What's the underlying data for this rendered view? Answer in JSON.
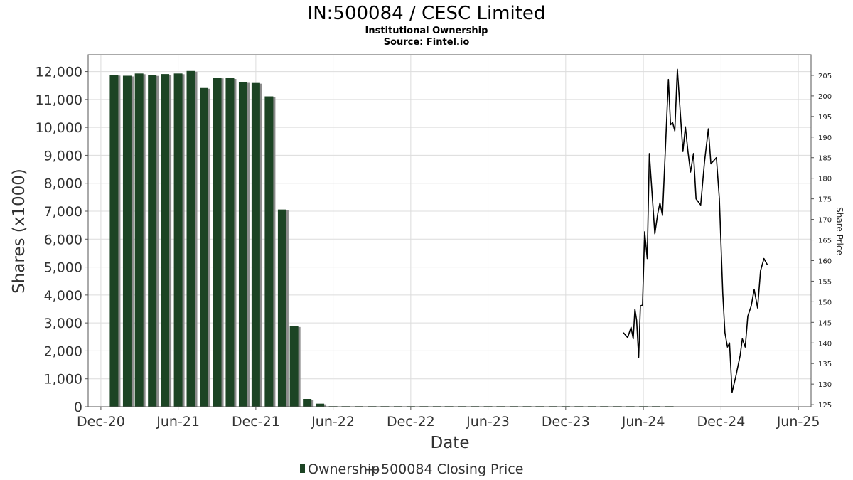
{
  "chart_data": {
    "type": "bar",
    "title": "IN:500084 / CESC Limited",
    "subtitle": "Institutional Ownership",
    "source": "Source: Fintel.io",
    "xlabel": "Date",
    "ylabel": "Shares (x1000)",
    "y2label": "Share Price",
    "ylim": [
      0,
      12600
    ],
    "y2lim": [
      124.5,
      210
    ],
    "xlim": [
      "2020-11-01",
      "2025-07-01"
    ],
    "yticks": [
      "0",
      "1,000",
      "2,000",
      "3,000",
      "4,000",
      "5,000",
      "6,000",
      "7,000",
      "8,000",
      "9,000",
      "10,000",
      "11,000",
      "12,000"
    ],
    "y2ticks": [
      "125",
      "130",
      "135",
      "140",
      "145",
      "150",
      "155",
      "160",
      "165",
      "170",
      "175",
      "180",
      "185",
      "190",
      "195",
      "200",
      "205"
    ],
    "xticks": [
      {
        "label": "Dec-20",
        "date": "2020-12-01"
      },
      {
        "label": "Jun-21",
        "date": "2021-06-01"
      },
      {
        "label": "Dec-21",
        "date": "2021-12-01"
      },
      {
        "label": "Jun-22",
        "date": "2022-06-01"
      },
      {
        "label": "Dec-22",
        "date": "2022-12-01"
      },
      {
        "label": "Jun-23",
        "date": "2023-06-01"
      },
      {
        "label": "Dec-23",
        "date": "2023-12-01"
      },
      {
        "label": "Jun-24",
        "date": "2024-06-01"
      },
      {
        "label": "Dec-24",
        "date": "2024-12-01"
      },
      {
        "label": "Jun-25",
        "date": "2025-06-01"
      }
    ],
    "grid": true,
    "legend_position": "bottom",
    "colors": {
      "bar": "#1c4424",
      "bar_shadow": "#8c8c8c",
      "line": "#000000",
      "frame": "#555555"
    },
    "series": [
      {
        "name": "Ownership",
        "type": "bar",
        "points": [
          {
            "date": "2021-01-01",
            "value": 11880
          },
          {
            "date": "2021-02-01",
            "value": 11850
          },
          {
            "date": "2021-03-01",
            "value": 11930
          },
          {
            "date": "2021-04-01",
            "value": 11870
          },
          {
            "date": "2021-05-01",
            "value": 11910
          },
          {
            "date": "2021-06-01",
            "value": 11930
          },
          {
            "date": "2021-07-01",
            "value": 12020
          },
          {
            "date": "2021-08-01",
            "value": 11410
          },
          {
            "date": "2021-09-01",
            "value": 11780
          },
          {
            "date": "2021-10-01",
            "value": 11760
          },
          {
            "date": "2021-11-01",
            "value": 11620
          },
          {
            "date": "2021-12-01",
            "value": 11590
          },
          {
            "date": "2022-01-01",
            "value": 11110
          },
          {
            "date": "2022-02-01",
            "value": 7060
          },
          {
            "date": "2022-03-01",
            "value": 2880
          },
          {
            "date": "2022-04-01",
            "value": 280
          },
          {
            "date": "2022-05-01",
            "value": 110
          },
          {
            "date": "2022-06-01",
            "value": 20
          },
          {
            "date": "2022-07-01",
            "value": 20
          },
          {
            "date": "2022-08-01",
            "value": 20
          },
          {
            "date": "2022-09-01",
            "value": 20
          },
          {
            "date": "2022-10-01",
            "value": 20
          },
          {
            "date": "2022-11-01",
            "value": 20
          },
          {
            "date": "2022-12-01",
            "value": 20
          },
          {
            "date": "2023-01-01",
            "value": 20
          },
          {
            "date": "2023-02-01",
            "value": 20
          },
          {
            "date": "2023-03-01",
            "value": 20
          },
          {
            "date": "2023-04-01",
            "value": 20
          },
          {
            "date": "2023-05-01",
            "value": 20
          },
          {
            "date": "2023-06-01",
            "value": 20
          },
          {
            "date": "2023-07-01",
            "value": 20
          },
          {
            "date": "2023-08-01",
            "value": 20
          },
          {
            "date": "2023-09-01",
            "value": 20
          },
          {
            "date": "2023-10-01",
            "value": 20
          },
          {
            "date": "2023-11-01",
            "value": 20
          },
          {
            "date": "2023-12-01",
            "value": 20
          },
          {
            "date": "2024-01-01",
            "value": 20
          },
          {
            "date": "2024-02-01",
            "value": 20
          },
          {
            "date": "2024-03-01",
            "value": 20
          },
          {
            "date": "2024-04-01",
            "value": 20
          },
          {
            "date": "2024-05-01",
            "value": 20
          },
          {
            "date": "2024-06-01",
            "value": 20
          },
          {
            "date": "2024-07-01",
            "value": 20
          },
          {
            "date": "2024-08-01",
            "value": 20
          }
        ]
      },
      {
        "name": "500084 Closing Price",
        "type": "line",
        "axis": "right",
        "points": [
          {
            "date": "2024-04-15",
            "value": 142.5
          },
          {
            "date": "2024-04-25",
            "value": 141.3
          },
          {
            "date": "2024-05-03",
            "value": 143.8
          },
          {
            "date": "2024-05-08",
            "value": 141.0
          },
          {
            "date": "2024-05-12",
            "value": 148.2
          },
          {
            "date": "2024-05-16",
            "value": 145.5
          },
          {
            "date": "2024-05-21",
            "value": 136.5
          },
          {
            "date": "2024-05-25",
            "value": 149.0
          },
          {
            "date": "2024-05-30",
            "value": 149.2
          },
          {
            "date": "2024-06-04",
            "value": 167.0
          },
          {
            "date": "2024-06-10",
            "value": 160.5
          },
          {
            "date": "2024-06-15",
            "value": 186.0
          },
          {
            "date": "2024-06-28",
            "value": 166.5
          },
          {
            "date": "2024-07-05",
            "value": 171.5
          },
          {
            "date": "2024-07-10",
            "value": 174.0
          },
          {
            "date": "2024-07-16",
            "value": 171.0
          },
          {
            "date": "2024-07-30",
            "value": 204.0
          },
          {
            "date": "2024-08-04",
            "value": 193.0
          },
          {
            "date": "2024-08-09",
            "value": 193.5
          },
          {
            "date": "2024-08-14",
            "value": 191.5
          },
          {
            "date": "2024-08-20",
            "value": 206.5
          },
          {
            "date": "2024-09-02",
            "value": 186.5
          },
          {
            "date": "2024-09-08",
            "value": 192.5
          },
          {
            "date": "2024-09-14",
            "value": 186.5
          },
          {
            "date": "2024-09-20",
            "value": 181.5
          },
          {
            "date": "2024-09-27",
            "value": 186.0
          },
          {
            "date": "2024-10-03",
            "value": 175.0
          },
          {
            "date": "2024-10-14",
            "value": 173.5
          },
          {
            "date": "2024-10-23",
            "value": 184.0
          },
          {
            "date": "2024-11-01",
            "value": 192.0
          },
          {
            "date": "2024-11-07",
            "value": 183.5
          },
          {
            "date": "2024-11-20",
            "value": 185.0
          },
          {
            "date": "2024-11-27",
            "value": 175.0
          },
          {
            "date": "2024-12-05",
            "value": 152.0
          },
          {
            "date": "2024-12-10",
            "value": 142.5
          },
          {
            "date": "2024-12-16",
            "value": 139.0
          },
          {
            "date": "2024-12-21",
            "value": 140.0
          },
          {
            "date": "2024-12-27",
            "value": 128.0
          },
          {
            "date": "2025-01-05",
            "value": 132.0
          },
          {
            "date": "2025-01-15",
            "value": 137.0
          },
          {
            "date": "2025-01-20",
            "value": 141.0
          },
          {
            "date": "2025-01-27",
            "value": 139.0
          },
          {
            "date": "2025-02-02",
            "value": 146.5
          },
          {
            "date": "2025-02-10",
            "value": 149.0
          },
          {
            "date": "2025-02-17",
            "value": 153.0
          },
          {
            "date": "2025-02-25",
            "value": 148.5
          },
          {
            "date": "2025-03-04",
            "value": 157.5
          },
          {
            "date": "2025-03-12",
            "value": 160.5
          },
          {
            "date": "2025-03-20",
            "value": 159.0
          }
        ]
      }
    ]
  },
  "legend": {
    "ownership_label": "Ownership",
    "separator": "—",
    "price_label": "500084 Closing Price"
  }
}
